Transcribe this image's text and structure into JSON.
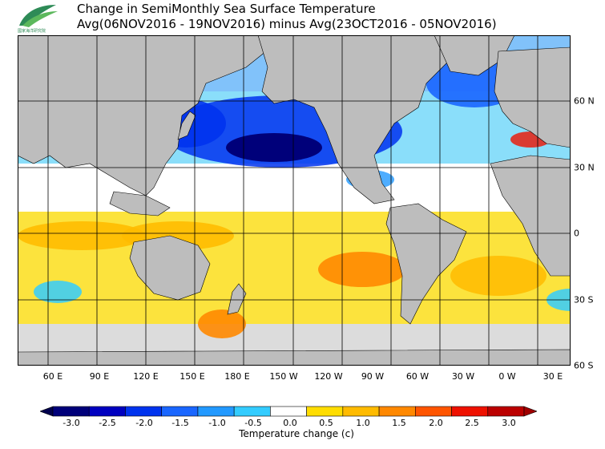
{
  "title": {
    "line1": "Change in SemiMonthly Sea Surface Temperature",
    "line2": "Avg(06NOV2016 - 19NOV2016) minus Avg(23OCT2016 - 05NOV2016)"
  },
  "logo": {
    "text": "國家海洋研究院"
  },
  "map": {
    "projection": "equirectangular, Pacific-centred",
    "longitude_labels": [
      "60 E",
      "90 E",
      "120 E",
      "150 E",
      "180 E",
      "150 W",
      "120 W",
      "90 W",
      "60 W",
      "30 W",
      "0 W",
      "30 E"
    ],
    "latitude_labels": [
      "60 N",
      "30 N",
      "0",
      "30 S",
      "60 S"
    ],
    "colors": {
      "land": "#bdbdbd",
      "ice": "#dcdcdc",
      "border": "#000000"
    },
    "anomaly_regions": [
      {
        "name": "north-pacific-cooling",
        "change_c": -2.5
      },
      {
        "name": "northwest-pacific-cooling",
        "change_c": -2.0
      },
      {
        "name": "north-atlantic-cooling",
        "change_c": -1.5
      },
      {
        "name": "southern-hemisphere-warming",
        "change_c": 0.5
      },
      {
        "name": "southeast-pacific-warm-spot",
        "change_c": 1.5
      },
      {
        "name": "south-of-australia-warm-spot",
        "change_c": 1.5
      }
    ]
  },
  "colorbar": {
    "title": "Temperature change  (c)",
    "labels": [
      "-3.0",
      "-2.5",
      "-2.0",
      "-1.5",
      "-1.0",
      "-0.5",
      "0.0",
      "0.5",
      "1.0",
      "1.5",
      "2.0",
      "2.5",
      "3.0"
    ],
    "colors": [
      "#00007a",
      "#0000c0",
      "#0033ee",
      "#1a66ff",
      "#2299ff",
      "#33ccff",
      "#ffffff",
      "#ffdd00",
      "#ffbb00",
      "#ff8800",
      "#ff5500",
      "#ee1100",
      "#bb0000"
    ],
    "end_colors": [
      "#00004d",
      "#a00000"
    ]
  }
}
